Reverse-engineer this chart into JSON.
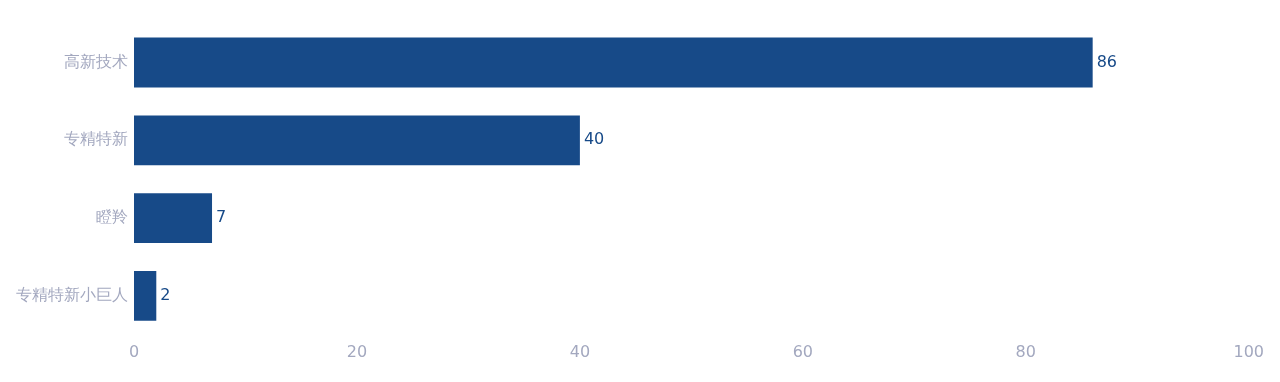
{
  "chart_data": {
    "type": "bar",
    "orientation": "horizontal",
    "categories": [
      "高新技术",
      "专精特新",
      "瞪羚",
      "专精特新小巨人"
    ],
    "values": [
      86,
      40,
      7,
      2
    ],
    "color": "#174a88",
    "xlim": [
      0,
      100
    ],
    "xticks": [
      0,
      20,
      40,
      60,
      80,
      100
    ],
    "grid": false,
    "legend": false,
    "data_labels": true
  }
}
